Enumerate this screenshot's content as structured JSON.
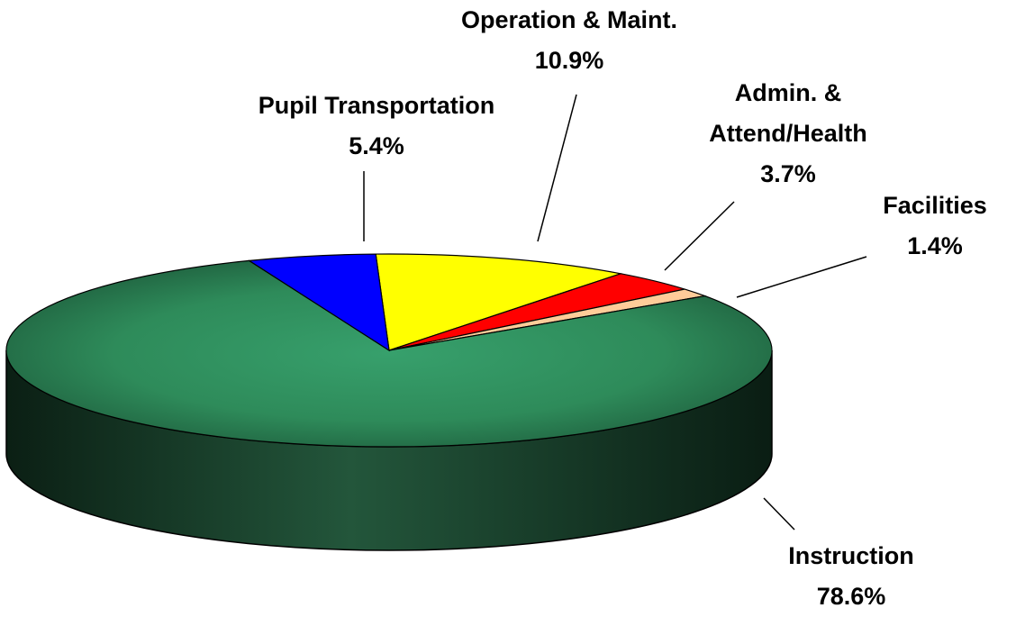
{
  "chart_data": {
    "type": "pie3d",
    "categories": [
      "Operation & Maint.",
      "Admin. & Attend/Health",
      "Facilities",
      "Instruction",
      "Pupil Transportation"
    ],
    "values": [
      10.9,
      3.7,
      1.4,
      78.6,
      5.4
    ],
    "value_labels": [
      "10.9%",
      "3.7%",
      "1.4%",
      "78.6%",
      "5.4%"
    ],
    "colors": [
      "#ffff00",
      "#ff0000",
      "#ffcc99",
      "#2e8b5a",
      "#0000ff"
    ]
  }
}
